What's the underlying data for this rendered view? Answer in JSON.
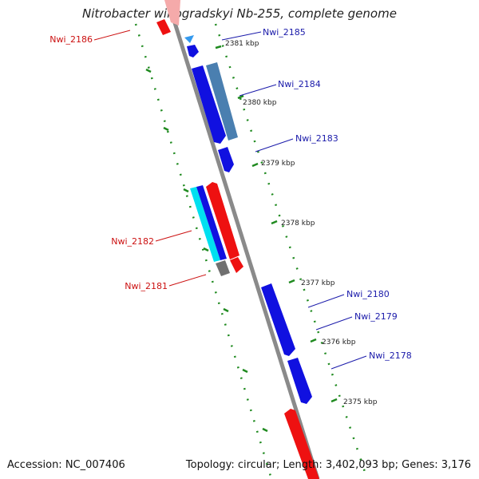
{
  "title": "Nitrobacter winogradskyi Nb-255, complete genome",
  "footer": {
    "accession": "Accession: NC_007406",
    "summary": "Topology: circular; Length: 3,402,093 bp; Genes: 3,176"
  },
  "colors": {
    "backbone": "#8a8a8a",
    "forward_label": "#1a1aaa",
    "reverse_label": "#cc1111",
    "ticks": "#1f8a1f",
    "gene_blue": "#1010e0",
    "gene_steel": "#4a7fb0",
    "gene_red": "#ee1111",
    "gene_cyan": "#00e0f0",
    "gene_gray": "#707070"
  },
  "kbp_labels": [
    "2381 kbp",
    "2380 kbp",
    "2379 kbp",
    "2378 kbp",
    "2377 kbp",
    "2376 kbp",
    "2375 kbp"
  ],
  "forward_genes": [
    "Nwi_2185",
    "Nwi_2184",
    "Nwi_2183",
    "Nwi_2180",
    "Nwi_2179",
    "Nwi_2178"
  ],
  "reverse_genes": [
    "Nwi_2186",
    "Nwi_2182",
    "Nwi_2181"
  ]
}
